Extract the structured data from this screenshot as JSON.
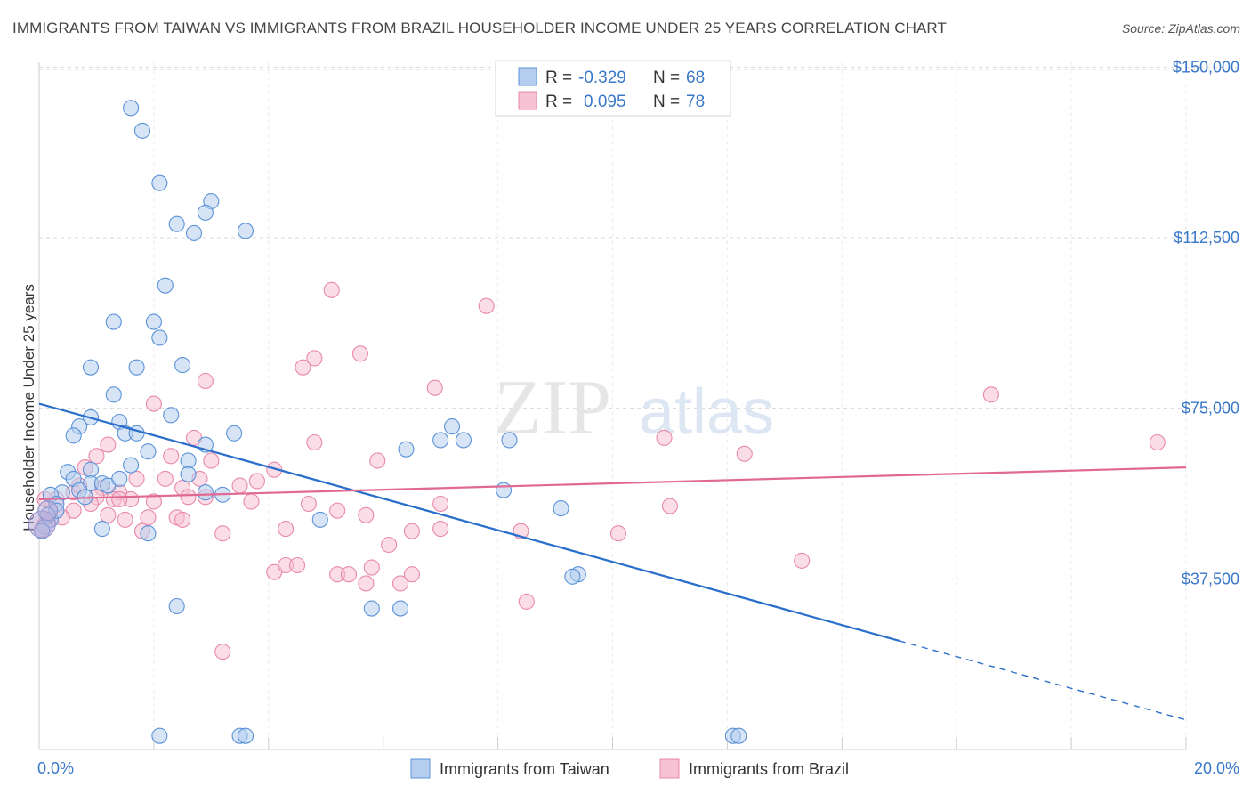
{
  "title": "IMMIGRANTS FROM TAIWAN VS IMMIGRANTS FROM BRAZIL HOUSEHOLDER INCOME UNDER 25 YEARS CORRELATION CHART",
  "source": "Source: ZipAtlas.com",
  "watermark": {
    "zip": "ZIP",
    "atlas": "atlas"
  },
  "colors": {
    "taiwan": "#5b93d8",
    "taiwan_fill": "#b5cdef",
    "taiwan_line": "#2a6fcb",
    "brazil": "#e889aa",
    "brazil_fill": "#f5c1d3",
    "brazil_line": "#e06893",
    "axis_text": "#3a78c9",
    "grid": "#d8d8d8"
  },
  "legend_top": {
    "taiwan": {
      "r_label": "R =",
      "r_value": "-0.329",
      "n_label": "N =",
      "n_value": "68"
    },
    "brazil": {
      "r_label": "R =",
      "r_value": "0.095",
      "n_label": "N =",
      "n_value": "78"
    }
  },
  "chart_data": {
    "type": "scatter",
    "title": "IMMIGRANTS FROM TAIWAN VS IMMIGRANTS FROM BRAZIL HOUSEHOLDER INCOME UNDER 25 YEARS CORRELATION CHART",
    "xlabel": "",
    "ylabel": "Householder Income Under 25 years",
    "xlim": [
      0,
      20
    ],
    "ylim": [
      0,
      157500
    ],
    "x_tick_labels": [
      "0.0%",
      "20.0%"
    ],
    "y_ticks": [
      37500,
      75000,
      112500,
      150000
    ],
    "y_tick_labels": [
      "$37,500",
      "$75,000",
      "$112,500",
      "$150,000"
    ],
    "grid": true,
    "legend": "top-center",
    "series": [
      {
        "name": "Immigrants from Taiwan",
        "trend": {
          "x0": 0,
          "y0": 76000,
          "x1": 20,
          "y1": 6500,
          "solid_until_x": 15
        },
        "points": [
          [
            1.6,
            141000
          ],
          [
            1.8,
            136000
          ],
          [
            2.1,
            124500
          ],
          [
            3.0,
            120500
          ],
          [
            2.9,
            118000
          ],
          [
            2.4,
            115500
          ],
          [
            2.7,
            113500
          ],
          [
            3.6,
            114000
          ],
          [
            2.2,
            102000
          ],
          [
            1.3,
            94000
          ],
          [
            2.0,
            94000
          ],
          [
            2.1,
            90500
          ],
          [
            0.9,
            84000
          ],
          [
            1.7,
            84000
          ],
          [
            2.5,
            84500
          ],
          [
            1.3,
            78000
          ],
          [
            0.9,
            73000
          ],
          [
            1.4,
            72000
          ],
          [
            2.3,
            73500
          ],
          [
            0.7,
            71000
          ],
          [
            1.5,
            69500
          ],
          [
            1.7,
            69500
          ],
          [
            0.6,
            69000
          ],
          [
            3.4,
            69500
          ],
          [
            2.9,
            67000
          ],
          [
            6.4,
            66000
          ],
          [
            1.9,
            65500
          ],
          [
            2.6,
            63500
          ],
          [
            1.6,
            62500
          ],
          [
            2.6,
            60500
          ],
          [
            0.9,
            61500
          ],
          [
            0.5,
            61000
          ],
          [
            0.9,
            58500
          ],
          [
            1.1,
            58500
          ],
          [
            0.6,
            59500
          ],
          [
            1.2,
            58000
          ],
          [
            1.4,
            59500
          ],
          [
            0.7,
            57000
          ],
          [
            0.4,
            56500
          ],
          [
            0.2,
            56000
          ],
          [
            0.8,
            55500
          ],
          [
            0.3,
            54000
          ],
          [
            0.2,
            50500
          ],
          [
            0.1,
            49000
          ],
          [
            0.05,
            48000
          ],
          [
            0.3,
            52500
          ],
          [
            1.1,
            48500
          ],
          [
            1.9,
            47500
          ],
          [
            3.2,
            56000
          ],
          [
            2.9,
            56500
          ],
          [
            4.9,
            50500
          ],
          [
            8.1,
            57000
          ],
          [
            9.1,
            53000
          ],
          [
            7.2,
            71000
          ],
          [
            7.0,
            68000
          ],
          [
            7.4,
            68000
          ],
          [
            8.2,
            68000
          ],
          [
            9.4,
            38500
          ],
          [
            9.3,
            38000
          ],
          [
            2.4,
            31500
          ],
          [
            5.8,
            31000
          ],
          [
            6.3,
            31000
          ],
          [
            2.1,
            3000
          ],
          [
            3.5,
            3000
          ],
          [
            3.6,
            3000
          ],
          [
            12.1,
            3000
          ],
          [
            12.2,
            3000
          ],
          [
            0.15,
            51500
          ]
        ]
      },
      {
        "name": "Immigrants from Brazil",
        "trend": {
          "x0": 0,
          "y0": 55000,
          "x1": 20,
          "y1": 62000
        },
        "points": [
          [
            5.1,
            101000
          ],
          [
            7.8,
            97500
          ],
          [
            4.8,
            86000
          ],
          [
            5.6,
            87000
          ],
          [
            4.6,
            84000
          ],
          [
            2.9,
            81000
          ],
          [
            6.9,
            79500
          ],
          [
            2.0,
            76000
          ],
          [
            16.6,
            78000
          ],
          [
            19.5,
            67500
          ],
          [
            10.9,
            68500
          ],
          [
            12.3,
            65000
          ],
          [
            1.2,
            67000
          ],
          [
            2.7,
            68500
          ],
          [
            4.8,
            67500
          ],
          [
            1.0,
            64500
          ],
          [
            2.3,
            64500
          ],
          [
            3.0,
            63500
          ],
          [
            5.9,
            63500
          ],
          [
            4.1,
            61500
          ],
          [
            0.8,
            62000
          ],
          [
            1.7,
            59500
          ],
          [
            2.2,
            59500
          ],
          [
            2.5,
            57500
          ],
          [
            3.5,
            58000
          ],
          [
            3.8,
            59000
          ],
          [
            1.1,
            57500
          ],
          [
            1.4,
            56500
          ],
          [
            0.6,
            56500
          ],
          [
            1.0,
            55500
          ],
          [
            0.3,
            55000
          ],
          [
            0.1,
            55000
          ],
          [
            0.9,
            54000
          ],
          [
            1.3,
            55000
          ],
          [
            1.6,
            55000
          ],
          [
            2.0,
            54500
          ],
          [
            2.6,
            55500
          ],
          [
            2.9,
            55500
          ],
          [
            3.7,
            54500
          ],
          [
            4.7,
            54000
          ],
          [
            0.6,
            52500
          ],
          [
            0.3,
            52500
          ],
          [
            1.2,
            51500
          ],
          [
            1.5,
            50500
          ],
          [
            1.9,
            51000
          ],
          [
            2.4,
            51000
          ],
          [
            2.5,
            50500
          ],
          [
            5.2,
            52500
          ],
          [
            5.7,
            51500
          ],
          [
            7.0,
            54000
          ],
          [
            0.2,
            50500
          ],
          [
            0.1,
            49500
          ],
          [
            0.05,
            48500
          ],
          [
            1.8,
            48000
          ],
          [
            3.2,
            47500
          ],
          [
            4.3,
            48500
          ],
          [
            6.5,
            48000
          ],
          [
            7.0,
            48500
          ],
          [
            8.4,
            48000
          ],
          [
            10.1,
            47500
          ],
          [
            11.0,
            53500
          ],
          [
            13.3,
            41500
          ],
          [
            4.1,
            39000
          ],
          [
            4.3,
            40500
          ],
          [
            4.5,
            40500
          ],
          [
            5.2,
            38500
          ],
          [
            5.4,
            38500
          ],
          [
            5.7,
            36500
          ],
          [
            5.8,
            40000
          ],
          [
            6.3,
            36500
          ],
          [
            6.5,
            38500
          ],
          [
            8.5,
            32500
          ],
          [
            3.2,
            21500
          ],
          [
            1.4,
            55000
          ],
          [
            0.4,
            51000
          ],
          [
            2.8,
            59500
          ],
          [
            0.7,
            58000
          ],
          [
            6.1,
            45000
          ]
        ]
      }
    ]
  },
  "legend_bottom": {
    "taiwan": "Immigrants from Taiwan",
    "brazil": "Immigrants from Brazil"
  }
}
